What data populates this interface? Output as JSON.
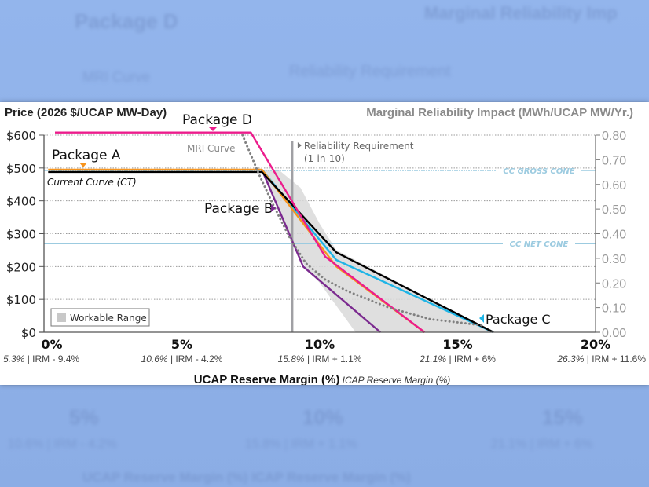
{
  "background": {
    "ghost_texts": [
      "Package D",
      "Marginal Reliability Imp",
      "MRI Curve",
      "Reliability Requirement",
      "5%",
      "10%",
      "15%",
      "10.6% | IRM - 4.2%",
      "15.8% | IRM + 1.1%",
      "21.1% | IRM + 6%",
      "UCAP Reserve Margin (%)  ICAP Reserve Margin (%)"
    ]
  },
  "chart_data": {
    "type": "line",
    "title_left": "Price (2026 $/UCAP MW-Day)",
    "title_right": "Marginal Reliability Impact (MWh/UCAP MW/Yr.)",
    "xlabel": "UCAP Reserve Margin (%)",
    "xlabel_secondary": "ICAP Reserve Margin (%)",
    "xlim": [
      0,
      20
    ],
    "ylim": [
      0,
      600
    ],
    "y2lim": [
      0,
      0.8
    ],
    "x_ticks": [
      {
        "value": 0,
        "label": "0%",
        "sub_icap": "5.3%",
        "sub_irm": "IRM - 9.4%"
      },
      {
        "value": 5,
        "label": "5%",
        "sub_icap": "10.6%",
        "sub_irm": "IRM - 4.2%"
      },
      {
        "value": 10,
        "label": "10%",
        "sub_icap": "15.8%",
        "sub_irm": "IRM + 1.1%"
      },
      {
        "value": 15,
        "label": "15%",
        "sub_icap": "21.1%",
        "sub_irm": "IRM + 6%"
      },
      {
        "value": 20,
        "label": "20%",
        "sub_icap": "26.3%",
        "sub_irm": "IRM + 11.6%"
      }
    ],
    "y_ticks": [
      {
        "value": 0,
        "label": "$0"
      },
      {
        "value": 100,
        "label": "$100"
      },
      {
        "value": 200,
        "label": "$200"
      },
      {
        "value": 300,
        "label": "$300"
      },
      {
        "value": 400,
        "label": "$400"
      },
      {
        "value": 500,
        "label": "$500"
      },
      {
        "value": 600,
        "label": "$600"
      }
    ],
    "y2_ticks": [
      "0.00",
      "0.10",
      "0.20",
      "0.30",
      "0.40",
      "0.50",
      "0.60",
      "0.70",
      "0.80"
    ],
    "grid": "horizontal dotted",
    "reference_lines": [
      {
        "name": "CC GROSS CONE",
        "y": 492,
        "color": "#9ccbe0"
      },
      {
        "name": "CC NET CONE",
        "y": 270,
        "color": "#9ccbe0"
      }
    ],
    "reliability_requirement": {
      "x": 9.0,
      "label": "Reliability Requirement",
      "sublabel": "(1-in-10)",
      "color": "#a0a0a4"
    },
    "workable_range": {
      "label": "Workable Range",
      "color": "#d9d9d9",
      "polygon": [
        [
          7.9,
          495
        ],
        [
          8.5,
          495
        ],
        [
          9.3,
          440
        ],
        [
          10.0,
          330
        ],
        [
          10.6,
          250
        ],
        [
          16.3,
          0
        ],
        [
          11.3,
          0
        ],
        [
          10.0,
          150
        ],
        [
          9.5,
          195
        ],
        [
          8.9,
          290
        ],
        [
          8.5,
          370
        ]
      ]
    },
    "series": [
      {
        "name": "Current Curve (CT)",
        "color": "#000000",
        "points": [
          [
            0,
            488
          ],
          [
            7.9,
            488
          ],
          [
            10.6,
            243
          ],
          [
            16.3,
            0
          ]
        ]
      },
      {
        "name": "Package A",
        "color": "#f7941d",
        "points": [
          [
            0,
            495
          ],
          [
            7.9,
            495
          ],
          [
            10.6,
            200
          ],
          [
            13.8,
            0
          ]
        ]
      },
      {
        "name": "Package B",
        "color": "#7b2a8f",
        "points": [
          [
            0,
            495
          ],
          [
            7.9,
            495
          ],
          [
            9.4,
            200
          ],
          [
            12.2,
            0
          ]
        ]
      },
      {
        "name": "Package C",
        "color": "#1fb5e6",
        "points": [
          [
            0,
            495
          ],
          [
            7.9,
            495
          ],
          [
            10.6,
            220
          ],
          [
            16.3,
            0
          ]
        ]
      },
      {
        "name": "Package D",
        "color": "#ec1c8c",
        "points": [
          [
            0,
            608
          ],
          [
            7.5,
            608
          ],
          [
            10.2,
            230
          ],
          [
            13.8,
            0
          ]
        ]
      },
      {
        "name": "MRI Curve",
        "color": "#808080",
        "dashed": true,
        "points": [
          [
            7.2,
            600
          ],
          [
            7.8,
            480
          ],
          [
            8.3,
            390
          ],
          [
            8.9,
            290
          ],
          [
            9.5,
            210
          ],
          [
            10.2,
            160
          ],
          [
            11.0,
            125
          ],
          [
            12.5,
            75
          ],
          [
            14.0,
            40
          ],
          [
            16.0,
            20
          ]
        ]
      }
    ],
    "annotations": [
      {
        "text": "Package D",
        "series": "Package D",
        "marker": "down"
      },
      {
        "text": "Package A",
        "series": "Package A",
        "marker": "down"
      },
      {
        "text": "Package B",
        "series": "Package B",
        "marker": "right"
      },
      {
        "text": "Package C",
        "series": "Package C",
        "marker": "left"
      },
      {
        "text": "Current Curve (CT)",
        "series": "Current Curve (CT)"
      },
      {
        "text": "MRI Curve",
        "series": "MRI Curve"
      }
    ]
  }
}
